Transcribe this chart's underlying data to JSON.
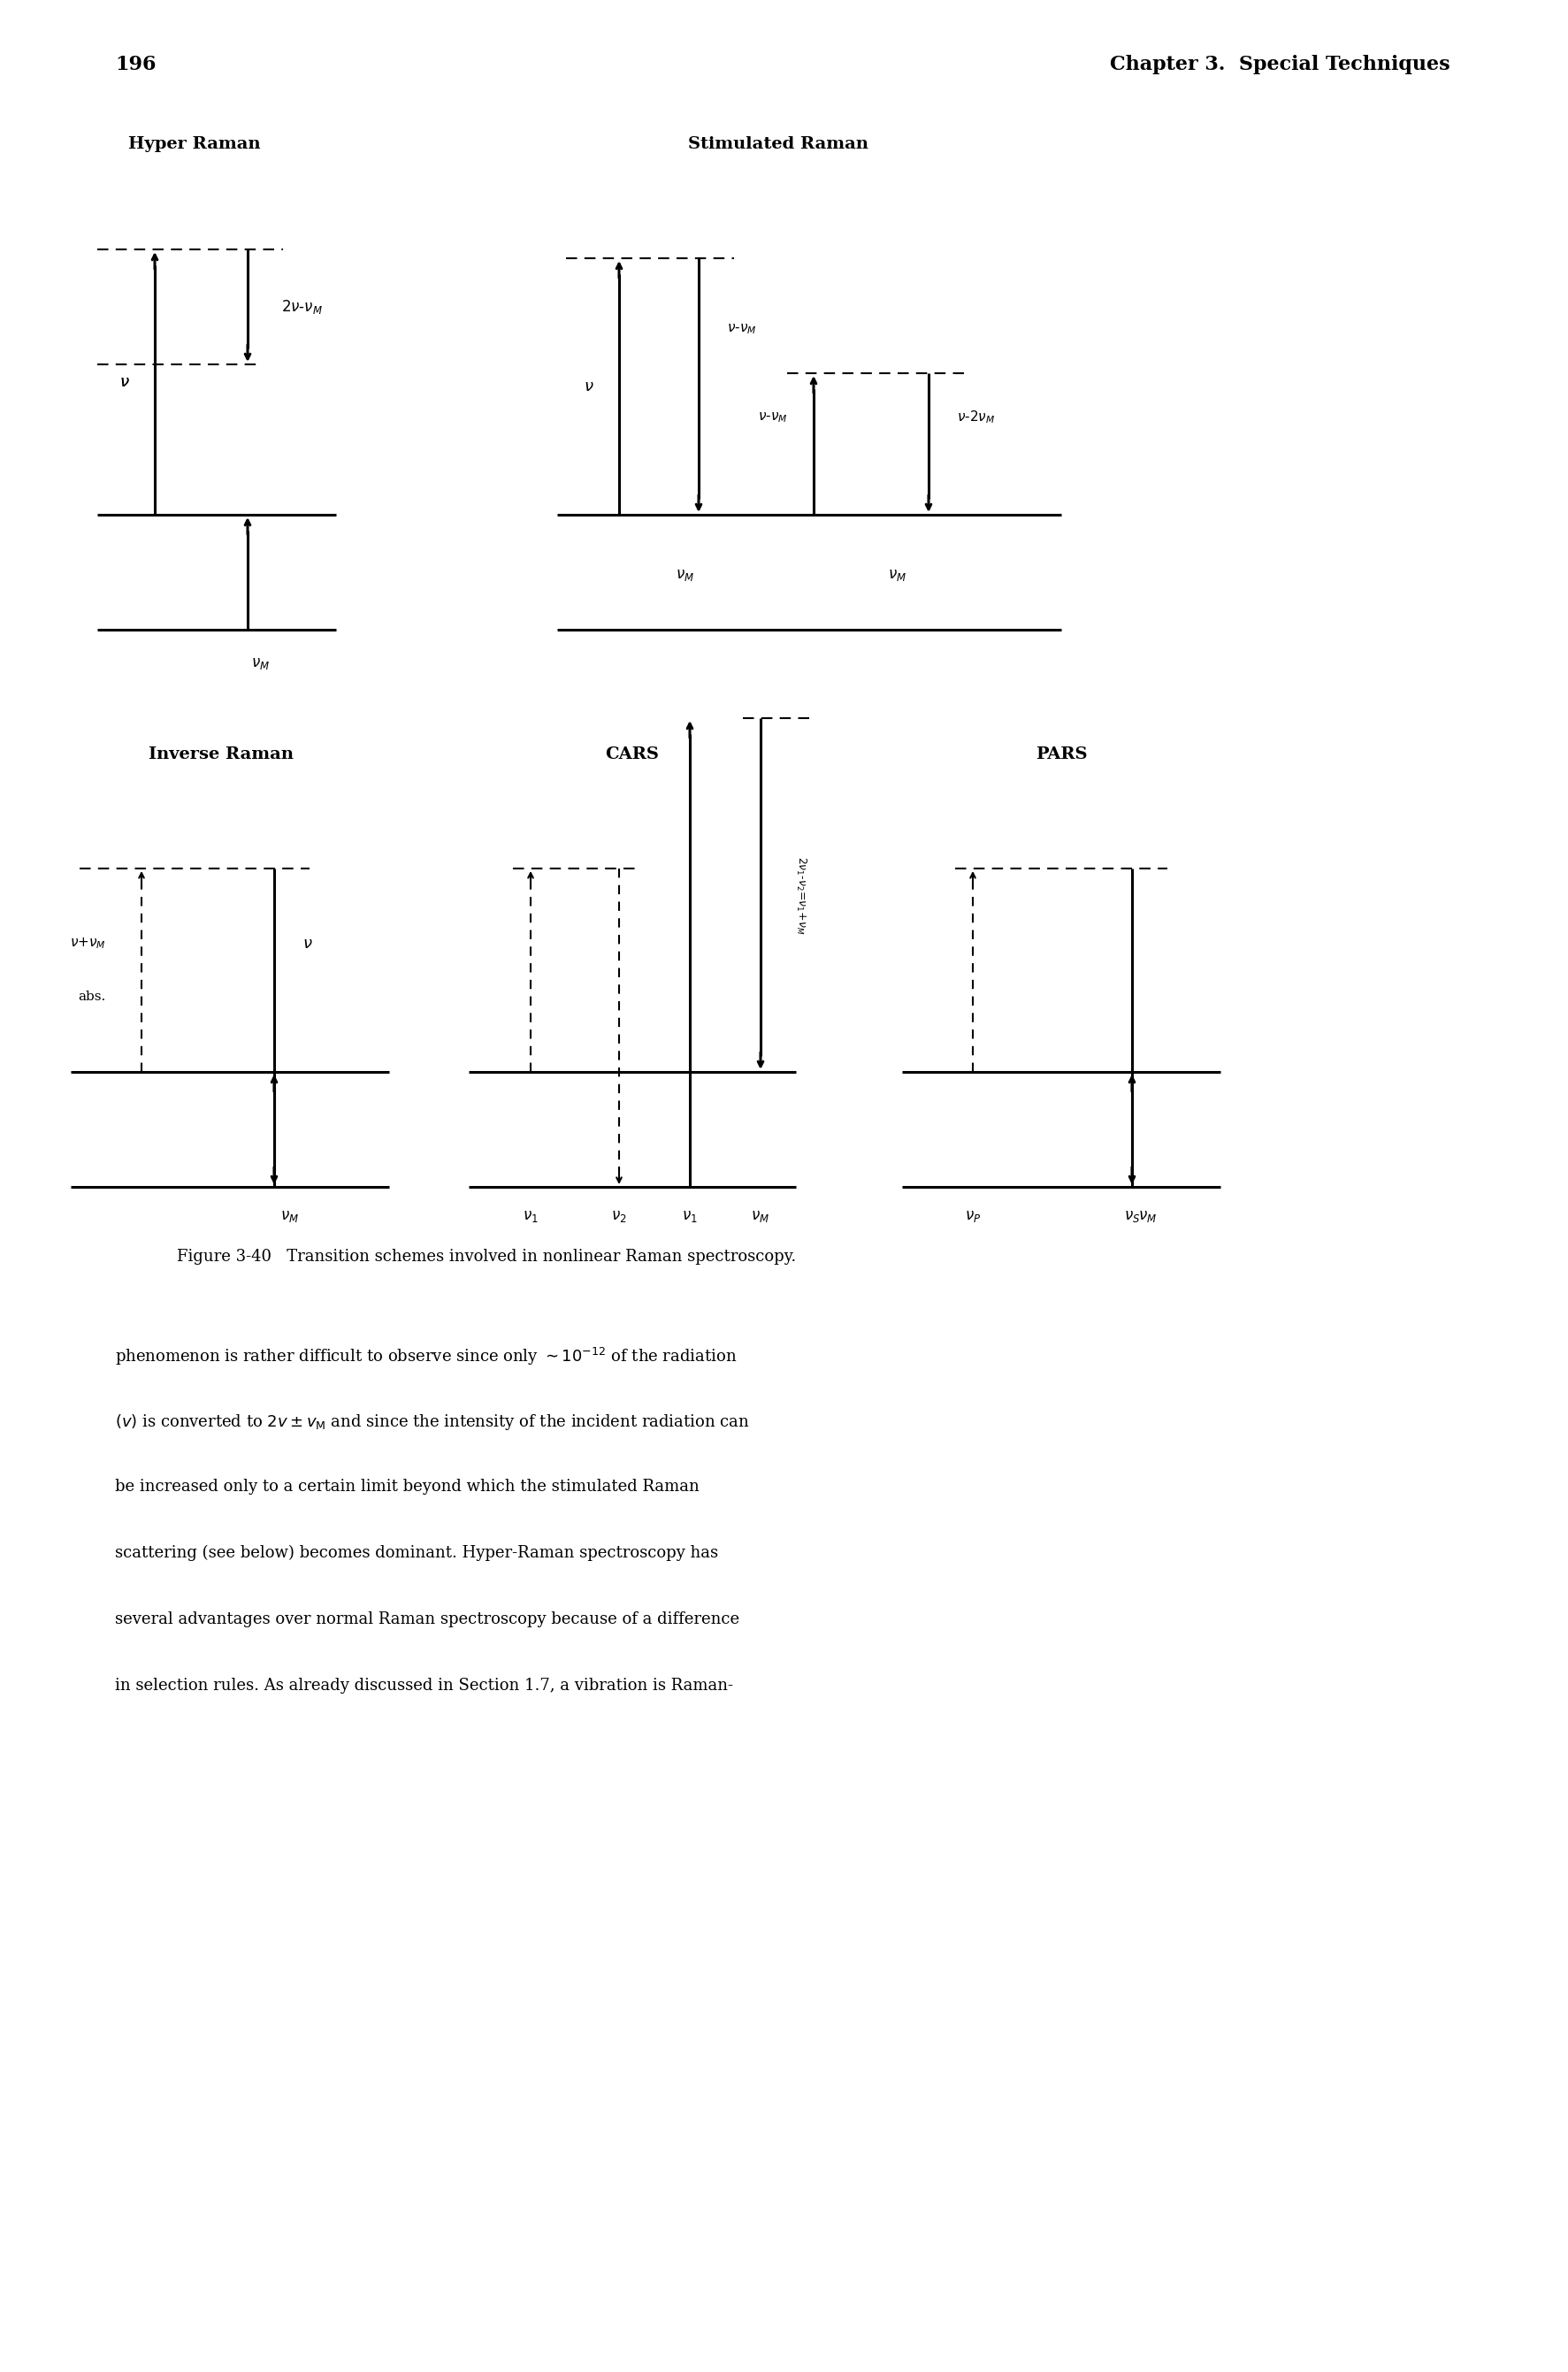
{
  "page_number": "196",
  "chapter_header": "Chapter 3.  Special Techniques",
  "figure_caption": "Figure 3-40   Transition schemes involved in nonlinear Raman spectroscopy.",
  "background_color": "#ffffff",
  "line_color": "#000000",
  "lw_thick": 2.2,
  "lw_thin": 1.5,
  "arrow_scale": 10,
  "fontsize_title": 14,
  "fontsize_label": 12,
  "fontsize_header": 15,
  "fontsize_body": 13
}
